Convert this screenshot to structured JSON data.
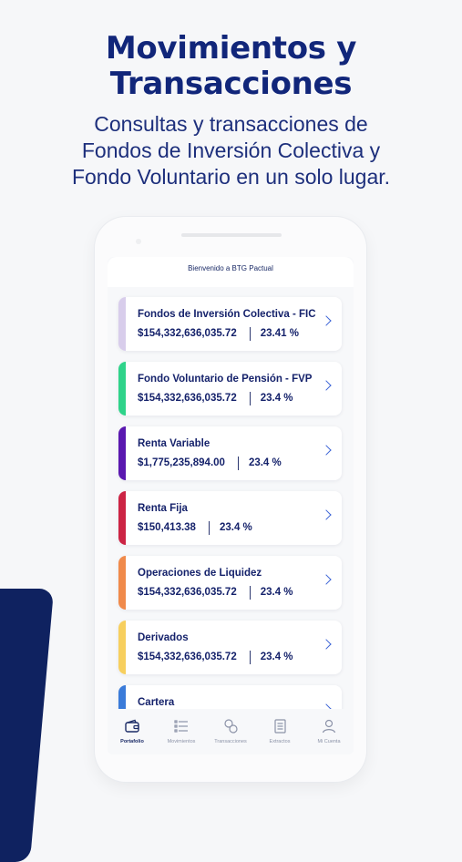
{
  "promo": {
    "title_line1": "Movimientos y",
    "title_line2": "Transacciones",
    "subtitle_line1": "Consultas y transacciones de",
    "subtitle_line2": "Fondos de Inversión Colectiva y",
    "subtitle_line3": "Fondo Voluntario en un solo lugar."
  },
  "app": {
    "header_text": "Bienvenido a BTG Pactual",
    "funds": [
      {
        "name": "Fondos de Inversión Colectiva - FIC",
        "amount": "$154,332,636,035.72",
        "percent": "23.41 %",
        "color": "#d8cdeb"
      },
      {
        "name": "Fondo Voluntario de Pensión - FVP",
        "amount": "$154,332,636,035.72",
        "percent": "23.4 %",
        "color": "#2fd38a"
      },
      {
        "name": "Renta Variable",
        "amount": "$1,775,235,894.00",
        "percent": "23.4 %",
        "color": "#5a18b0"
      },
      {
        "name": "Renta Fija",
        "amount": "$150,413.38",
        "percent": "23.4 %",
        "color": "#cc2444"
      },
      {
        "name": "Operaciones de Liquidez",
        "amount": "$154,332,636,035.72",
        "percent": "23.4 %",
        "color": "#f08a4b"
      },
      {
        "name": "Derivados",
        "amount": "$154,332,636,035.72",
        "percent": "23.4 %",
        "color": "#f7cf5e"
      },
      {
        "name": "Cartera",
        "amount": "",
        "percent": "",
        "color": "#3a7bd9"
      }
    ],
    "tabs": [
      {
        "label": "Portafolio",
        "icon": "wallet-icon",
        "active": true
      },
      {
        "label": "Movimientos",
        "icon": "list-icon",
        "active": false
      },
      {
        "label": "Transacciones",
        "icon": "coins-icon",
        "active": false
      },
      {
        "label": "Extractos",
        "icon": "document-icon",
        "active": false
      },
      {
        "label": "Mi Cuenta",
        "icon": "user-icon",
        "active": false
      }
    ]
  },
  "colors": {
    "brand_navy": "#11267a",
    "accent_blue": "#3b63d6"
  }
}
